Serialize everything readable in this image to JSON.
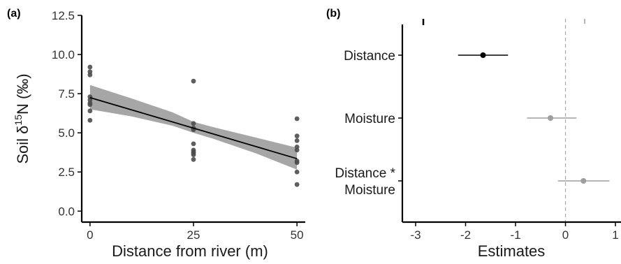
{
  "chart_data": [
    {
      "type": "scatter",
      "panel_label": "(a)",
      "xlabel": "Distance from river (m)",
      "ylabel_parts": [
        "Soil δ",
        "15",
        "N (‰)"
      ],
      "xlim": [
        -2,
        52
      ],
      "ylim": [
        -0.7,
        12.5
      ],
      "x_ticks": [
        0,
        25,
        50
      ],
      "x_tick_labels": [
        "0",
        "25",
        "50"
      ],
      "y_ticks": [
        0,
        2.5,
        5,
        7.5,
        10,
        12.5
      ],
      "y_tick_labels": [
        "0.0",
        "2.5",
        "5.0",
        "7.5",
        "10.0",
        "12.5"
      ],
      "points": [
        {
          "x": 0,
          "y": 9.2
        },
        {
          "x": 0,
          "y": 8.9
        },
        {
          "x": 0,
          "y": 8.7
        },
        {
          "x": 0,
          "y": 7.3
        },
        {
          "x": 0,
          "y": 7.1
        },
        {
          "x": 0,
          "y": 6.9
        },
        {
          "x": 0,
          "y": 6.8
        },
        {
          "x": 0,
          "y": 6.4
        },
        {
          "x": 0,
          "y": 5.8
        },
        {
          "x": 25,
          "y": 8.3
        },
        {
          "x": 25,
          "y": 5.6
        },
        {
          "x": 25,
          "y": 5.3
        },
        {
          "x": 25,
          "y": 5.2
        },
        {
          "x": 25,
          "y": 4.3
        },
        {
          "x": 25,
          "y": 3.9
        },
        {
          "x": 25,
          "y": 3.8
        },
        {
          "x": 25,
          "y": 3.7
        },
        {
          "x": 25,
          "y": 3.6
        },
        {
          "x": 25,
          "y": 3.3
        },
        {
          "x": 50,
          "y": 5.9
        },
        {
          "x": 50,
          "y": 4.8
        },
        {
          "x": 50,
          "y": 4.5
        },
        {
          "x": 50,
          "y": 4.1
        },
        {
          "x": 50,
          "y": 3.9
        },
        {
          "x": 50,
          "y": 3.2
        },
        {
          "x": 50,
          "y": 3.1
        },
        {
          "x": 50,
          "y": 2.5
        },
        {
          "x": 50,
          "y": 1.7
        }
      ],
      "fit_line": {
        "x": [
          0,
          50
        ],
        "y": [
          7.25,
          3.35
        ]
      },
      "confidence_band": {
        "x": [
          0,
          10,
          20,
          25,
          30,
          40,
          50
        ],
        "lower": [
          6.5,
          6.05,
          5.45,
          5.0,
          4.6,
          3.7,
          2.65
        ],
        "upper": [
          8.05,
          7.2,
          6.3,
          5.7,
          5.35,
          4.7,
          4.05
        ]
      },
      "grid": false,
      "point_color": "#4d4d4d",
      "band_color": "#a6a6a6",
      "line_color": "#000000"
    },
    {
      "type": "scatter",
      "panel_label": "(b)",
      "xlabel": "Estimates",
      "xlim": [
        -3.3,
        1.0
      ],
      "x_ticks": [
        -3,
        -2,
        -1,
        0,
        1
      ],
      "x_tick_labels": [
        "-3",
        "-2",
        "-1",
        "0",
        "1"
      ],
      "reference_line_x": 0,
      "terms": [
        {
          "label_lines": [
            "Distance"
          ],
          "estimate": -1.65,
          "ci": [
            -2.15,
            -1.15
          ],
          "color": "#000000"
        },
        {
          "label_lines": [
            "Moisture"
          ],
          "estimate": -0.3,
          "ci": [
            -0.77,
            0.22
          ],
          "color": "#9e9e9e"
        },
        {
          "label_lines": [
            "Distance *",
            "Moisture"
          ],
          "estimate": 0.36,
          "ci": [
            -0.15,
            0.88
          ],
          "color": "#9e9e9e"
        }
      ],
      "grid": false
    }
  ]
}
